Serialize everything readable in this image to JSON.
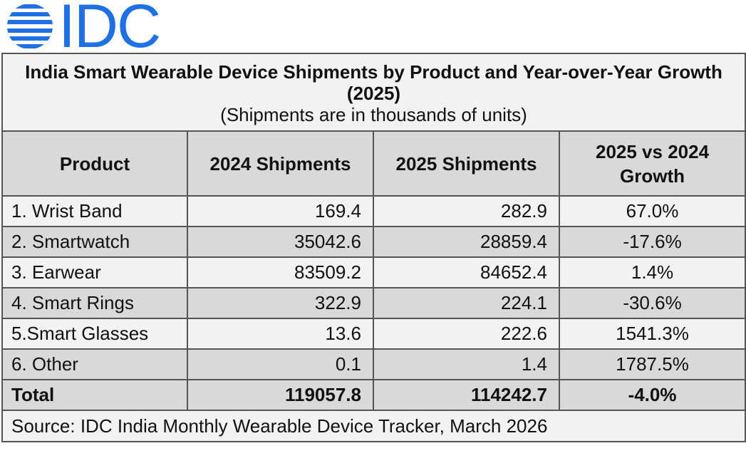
{
  "logo": {
    "text": "IDC",
    "color": "#1f6fe5"
  },
  "title": {
    "line1": "India Smart Wearable Device Shipments by Product and Year-over-Year Growth (2025)",
    "subtitle": "(Shipments are in thousands of units)"
  },
  "headers": [
    "Product",
    "2024 Shipments",
    "2025 Shipments",
    "2025 vs 2024 Growth"
  ],
  "rows": [
    {
      "product": "1. Wrist Band",
      "y2024": "169.4",
      "y2025": "282.9",
      "growth": "67.0%"
    },
    {
      "product": "2. Smartwatch",
      "y2024": "35042.6",
      "y2025": "28859.4",
      "growth": "-17.6%"
    },
    {
      "product": "3. Earwear",
      "y2024": "83509.2",
      "y2025": "84652.4",
      "growth": "1.4%"
    },
    {
      "product": "4. Smart Rings",
      "y2024": "322.9",
      "y2025": "224.1",
      "growth": "-30.6%"
    },
    {
      "product": "5.Smart Glasses",
      "y2024": "13.6",
      "y2025": "222.6",
      "growth": "1541.3%"
    },
    {
      "product": "6. Other",
      "y2024": "0.1",
      "y2025": "1.4",
      "growth": "1787.5%"
    }
  ],
  "total": {
    "product": "Total",
    "y2024": "119057.8",
    "y2025": "114242.7",
    "growth": "-4.0%"
  },
  "source": "Source: IDC India Monthly Wearable Device Tracker, March 2026"
}
